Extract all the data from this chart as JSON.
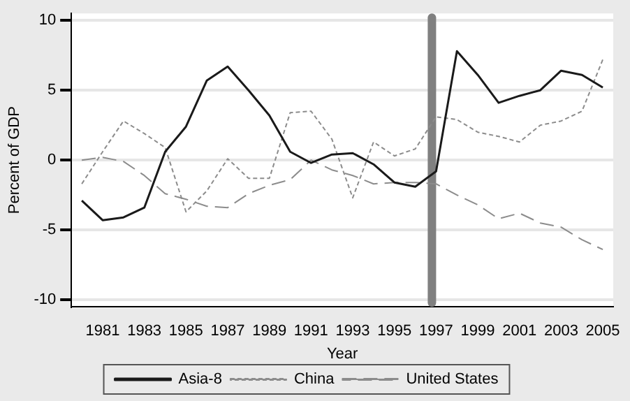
{
  "chart_data": {
    "type": "line",
    "xlabel": "Year",
    "ylabel": "Percent of GDP",
    "x": [
      1980,
      1981,
      1982,
      1983,
      1984,
      1985,
      1986,
      1987,
      1988,
      1989,
      1990,
      1991,
      1992,
      1993,
      1994,
      1995,
      1996,
      1997,
      1998,
      1999,
      2000,
      2001,
      2002,
      2003,
      2004,
      2005
    ],
    "series": [
      {
        "name": "Asia-8",
        "color": "#1a1a1a",
        "line_style": "solid",
        "values": [
          -2.9,
          -4.3,
          -4.1,
          -3.4,
          0.6,
          2.4,
          5.7,
          6.7,
          5.0,
          3.2,
          0.6,
          -0.2,
          0.4,
          0.5,
          -0.3,
          -1.6,
          -1.9,
          -0.8,
          7.8,
          6.1,
          4.1,
          4.6,
          5.0,
          6.4,
          6.1,
          5.2
        ]
      },
      {
        "name": "China",
        "color": "#8c8c8c",
        "line_style": "dotted",
        "values": [
          -1.7,
          0.6,
          2.8,
          1.9,
          0.9,
          -3.7,
          -2.2,
          0.1,
          -1.3,
          -1.3,
          3.4,
          3.5,
          1.5,
          -2.7,
          1.3,
          0.3,
          0.8,
          3.1,
          2.9,
          2.0,
          1.7,
          1.3,
          2.5,
          2.8,
          3.5,
          7.2
        ]
      },
      {
        "name": "United States",
        "color": "#8c8c8c",
        "line_style": "dashed",
        "values": [
          0.0,
          0.2,
          -0.1,
          -1.1,
          -2.4,
          -2.8,
          -3.3,
          -3.4,
          -2.4,
          -1.8,
          -1.4,
          0.0,
          -0.7,
          -1.1,
          -1.7,
          -1.6,
          -1.6,
          -1.7,
          -2.5,
          -3.2,
          -4.2,
          -3.8,
          -4.5,
          -4.8,
          -5.7,
          -6.4
        ]
      }
    ],
    "xlim": [
      1979.5,
      2005.5
    ],
    "xticks": [
      1981,
      1983,
      1985,
      1987,
      1989,
      1991,
      1993,
      1995,
      1997,
      1999,
      2001,
      2003,
      2005
    ],
    "ylim": [
      -10.5,
      10.5
    ],
    "yticks": [
      -10,
      -5,
      0,
      5,
      10
    ],
    "ref_lines": [
      {
        "axis": "x",
        "value": 1996.8,
        "color": "#808080"
      }
    ],
    "grid": "y",
    "legend": "bottom",
    "marker": "none"
  }
}
